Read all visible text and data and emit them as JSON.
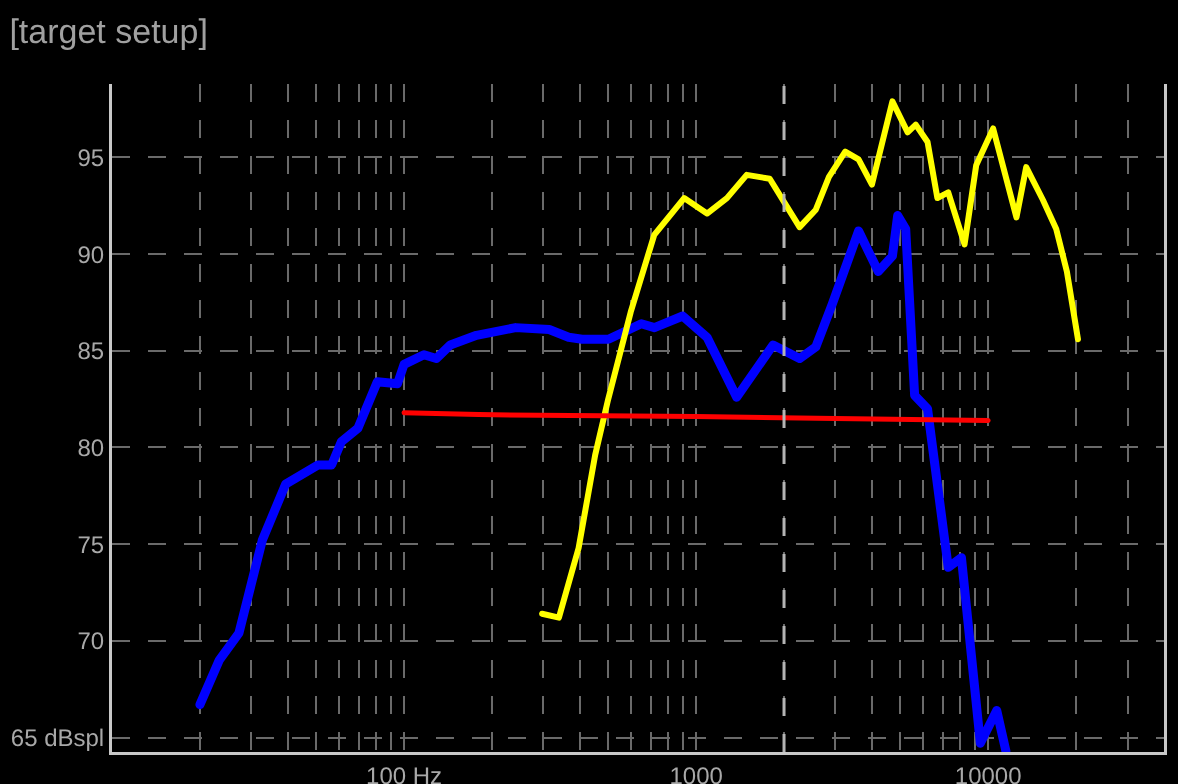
{
  "chart_data": {
    "type": "line",
    "title": "[target setup]",
    "xlim": [
      10,
      40000
    ],
    "ylim": [
      64.25,
      98.8
    ],
    "log": "x",
    "grid": true,
    "line_style": "solid",
    "marker": "none",
    "xticks": [
      {
        "value": 20,
        "label": null
      },
      {
        "value": 30,
        "label": null
      },
      {
        "value": 40,
        "label": null
      },
      {
        "value": 50,
        "label": null
      },
      {
        "value": 60,
        "label": null
      },
      {
        "value": 70,
        "label": null
      },
      {
        "value": 80,
        "label": null
      },
      {
        "value": 90,
        "label": null
      },
      {
        "value": 100,
        "label": "100 Hz"
      },
      {
        "value": 200,
        "label": null
      },
      {
        "value": 300,
        "label": null
      },
      {
        "value": 400,
        "label": null
      },
      {
        "value": 500,
        "label": null
      },
      {
        "value": 600,
        "label": null
      },
      {
        "value": 700,
        "label": null
      },
      {
        "value": 800,
        "label": null
      },
      {
        "value": 900,
        "label": null
      },
      1000,
      {
        "value": 2000,
        "label": null
      },
      {
        "value": 3000,
        "label": null
      },
      {
        "value": 4000,
        "label": null
      },
      {
        "value": 5000,
        "label": null
      },
      {
        "value": 6000,
        "label": null
      },
      {
        "value": 7000,
        "label": null
      },
      {
        "value": 8000,
        "label": null
      },
      {
        "value": 9000,
        "label": null
      },
      10000,
      {
        "value": 20000,
        "label": null
      },
      {
        "value": 30000,
        "label": null
      }
    ],
    "yticks": [
      {
        "value": 65,
        "label": "65 dBspl"
      },
      70,
      75,
      80,
      85,
      90,
      95
    ],
    "ref_lines": [
      {
        "axis": "x",
        "value": 2000,
        "label": null,
        "color": "#b4b4b4",
        "line_style": "dashed"
      }
    ],
    "series": [
      {
        "color": "#0000ff",
        "x": [
          20,
          23.3,
          27.2,
          32.7,
          39.3,
          50.8,
          56.5,
          61,
          69.5,
          81,
          95,
          100,
          117,
          129,
          144,
          177,
          241,
          314,
          366,
          407,
          501,
          649,
          720,
          900,
          1090,
          1377,
          1834,
          2261,
          2570,
          2923,
          3600,
          4205,
          4700,
          4900,
          5220,
          5600,
          6200,
          7300,
          8100,
          9400,
          10700,
          11500
        ],
        "values": [
          66.7,
          69.0,
          70.4,
          75.2,
          78.1,
          79.1,
          79.1,
          80.3,
          81.0,
          83.4,
          83.3,
          84.3,
          84.8,
          84.6,
          85.3,
          85.8,
          86.2,
          86.1,
          85.7,
          85.6,
          85.6,
          86.4,
          86.2,
          86.8,
          85.7,
          82.6,
          85.3,
          84.6,
          85.2,
          87.4,
          91.2,
          89.1,
          89.9,
          92.0,
          91.3,
          82.7,
          82.0,
          73.8,
          74.3,
          64.7,
          66.4,
          64.3
        ]
      },
      {
        "color": "#ffff00",
        "x": [
          297,
          339,
          396,
          451,
          500,
          597,
          719,
          910,
          1090,
          1275,
          1490,
          1787,
          2261,
          2570,
          2850,
          3240,
          3600,
          4000,
          4700,
          5300,
          5650,
          6200,
          6700,
          7300,
          8300,
          9100,
          10400,
          12500,
          13500,
          15400,
          17100,
          18600,
          20300
        ],
        "values": [
          71.4,
          71.2,
          74.8,
          79.6,
          82.5,
          87.0,
          91.0,
          92.9,
          92.1,
          92.9,
          94.1,
          93.9,
          91.4,
          92.3,
          94.0,
          95.3,
          94.9,
          93.6,
          97.9,
          96.3,
          96.7,
          95.8,
          92.9,
          93.2,
          90.5,
          94.6,
          96.5,
          91.9,
          94.5,
          92.8,
          91.3,
          89.1,
          85.6
        ]
      },
      {
        "color": "#ff0000",
        "x": [
          100,
          180,
          1000,
          3000,
          10000
        ],
        "values": [
          81.8,
          81.7,
          81.6,
          81.5,
          81.4
        ]
      }
    ]
  }
}
